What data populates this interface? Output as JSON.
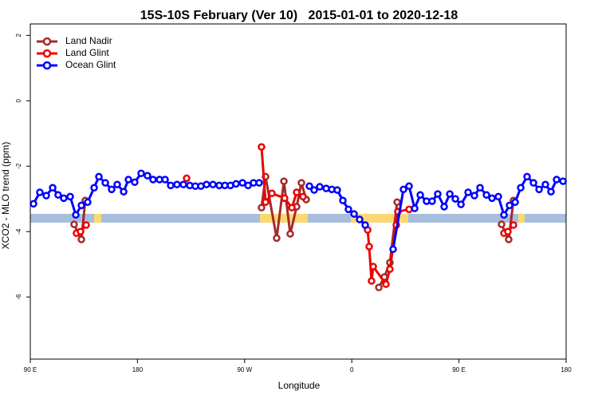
{
  "chart_data": {
    "type": "line",
    "title": "15S-10S February (Ver 10)   2015-01-01 to 2020-12-18",
    "x_label": "Longitude",
    "y_label": "XCO2 - MLO trend (ppm)",
    "xlim": [
      90,
      540
    ],
    "ylim": [
      -7.9,
      2.35
    ],
    "xticks": [
      {
        "value": 90,
        "label": "90 E"
      },
      {
        "value": 180,
        "label": "180"
      },
      {
        "value": 270,
        "label": "90 W"
      },
      {
        "value": 360,
        "label": "0"
      },
      {
        "value": 450,
        "label": "90 E"
      },
      {
        "value": 540,
        "label": "180"
      }
    ],
    "yticks": [
      2,
      0,
      -2,
      -4,
      -6
    ],
    "legend": "top-left",
    "series": [
      {
        "name": "Land Nadir",
        "color": "#a52a2a",
        "x": [
          126.8,
          132.9,
          136.2,
          null,
          284.2,
          287.6,
          296.9,
          303.0,
          308.3,
          313.7,
          317.7,
          321.7,
          null,
          382.7,
          387.4,
          392.0,
          398.1,
          null,
          485.8,
          491.8,
          495.8
        ],
        "values": [
          -3.78,
          -4.24,
          -3.05,
          null,
          -3.27,
          -2.32,
          -4.2,
          -2.46,
          -4.07,
          -3.24,
          -2.51,
          -3.02,
          null,
          -5.71,
          -5.39,
          -4.95,
          -3.1,
          null,
          -3.78,
          -4.24,
          -3.05
        ]
      },
      {
        "name": "Land Glint",
        "color": "#ee0000",
        "x": [
          128.8,
          132.2,
          136.9,
          null,
          221.3,
          null,
          284.2,
          287.6,
          292.9,
          303.6,
          309.7,
          313.7,
          319.0,
          null,
          373.3,
          374.6,
          376.6,
          378.0,
          388.7,
          392.0,
          397.4,
          398.7,
          408.1,
          null,
          487.8,
          491.1,
          495.8
        ],
        "values": [
          -4.05,
          -4.0,
          -3.8,
          null,
          -2.37,
          null,
          -1.41,
          -3.1,
          -2.83,
          -2.98,
          -3.27,
          -2.8,
          -2.93,
          null,
          -3.95,
          -4.46,
          -5.51,
          -5.07,
          -5.61,
          -5.15,
          -3.8,
          -3.39,
          -3.32,
          null,
          -4.05,
          -4.0,
          -3.8
        ]
      },
      {
        "name": "Ocean Glint",
        "color": "#0000ff",
        "x": [
          92.7,
          98.0,
          103.4,
          108.8,
          113.4,
          118.1,
          123.5,
          128.2,
          132.9,
          138.2,
          143.6,
          147.6,
          153.0,
          158.3,
          163.0,
          168.4,
          172.4,
          177.7,
          183.1,
          188.4,
          193.1,
          198.5,
          203.2,
          207.9,
          213.2,
          218.6,
          223.9,
          228.6,
          233.3,
          238.0,
          243.4,
          248.7,
          253.4,
          258.1,
          262.8,
          268.2,
          272.9,
          277.5,
          282.2,
          null,
          324.4,
          328.4,
          333.1,
          338.5,
          343.2,
          347.8,
          352.5,
          357.2,
          361.9,
          366.6,
          371.3,
          null,
          394.7,
          403.4,
          408.1,
          412.8,
          417.5,
          422.8,
          427.5,
          432.2,
          437.6,
          442.3,
          447.0,
          451.7,
          457.7,
          463.0,
          467.7,
          473.1,
          477.8,
          483.1,
          487.8,
          492.5,
          497.2,
          501.9,
          507.2,
          512.6,
          517.3,
          522.6,
          527.3,
          532.0,
          537.4
        ],
        "values": [
          -3.15,
          -2.8,
          -2.9,
          -2.66,
          -2.88,
          -2.98,
          -2.93,
          -3.49,
          -3.2,
          -3.1,
          -2.66,
          -2.32,
          -2.51,
          -2.71,
          -2.56,
          -2.78,
          -2.41,
          -2.49,
          -2.22,
          -2.29,
          -2.41,
          -2.41,
          -2.41,
          -2.59,
          -2.56,
          -2.56,
          -2.59,
          -2.61,
          -2.61,
          -2.56,
          -2.56,
          -2.59,
          -2.59,
          -2.59,
          -2.54,
          -2.51,
          -2.59,
          -2.51,
          -2.51,
          null,
          -2.61,
          -2.73,
          -2.63,
          -2.68,
          -2.71,
          -2.73,
          -3.05,
          -3.32,
          -3.46,
          -3.63,
          -3.8,
          null,
          -4.54,
          -2.71,
          -2.61,
          -3.29,
          -2.88,
          -3.07,
          -3.07,
          -2.85,
          -3.24,
          -2.85,
          -3.0,
          -3.17,
          -2.8,
          -2.9,
          -2.66,
          -2.88,
          -2.98,
          -2.93,
          -3.49,
          -3.2,
          -3.1,
          -2.66,
          -2.32,
          -2.51,
          -2.71,
          -2.56,
          -2.78,
          -2.41,
          -2.46
        ]
      }
    ]
  }
}
